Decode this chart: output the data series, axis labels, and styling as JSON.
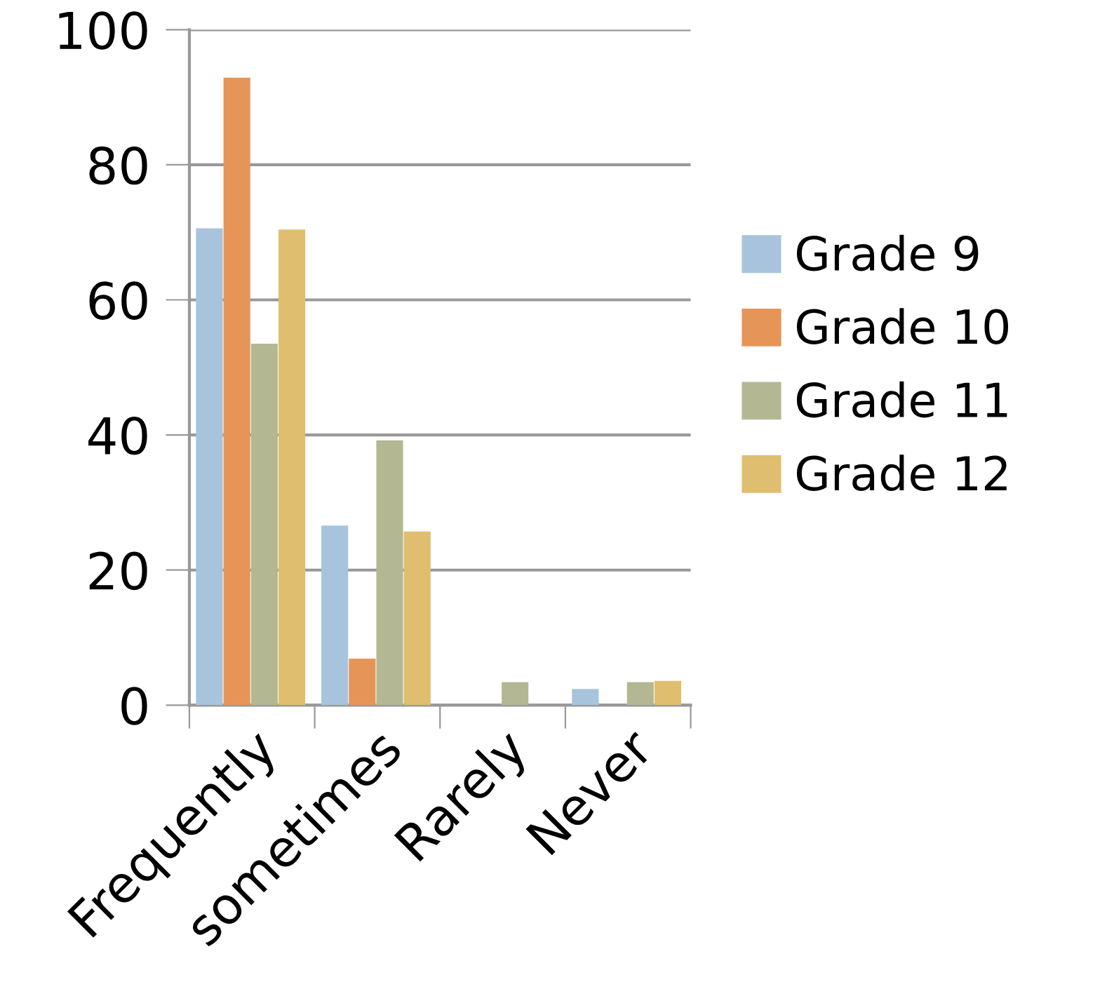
{
  "chart_data": {
    "type": "bar",
    "categories": [
      "Frequently",
      "sometimes",
      "Rarely",
      "Never"
    ],
    "series": [
      {
        "name": "Grade 9",
        "color": "#a7c4dc",
        "values": [
          70.6,
          26.6,
          0,
          2.4
        ]
      },
      {
        "name": "Grade 10",
        "color": "#e69559",
        "values": [
          92.9,
          6.9,
          0,
          0
        ]
      },
      {
        "name": "Grade 11",
        "color": "#b4b892",
        "values": [
          53.5,
          39.2,
          3.4,
          3.4
        ]
      },
      {
        "name": "Grade 12",
        "color": "#dfbe6f",
        "values": [
          70.4,
          25.7,
          0,
          3.6
        ]
      }
    ],
    "ylim": [
      0,
      100
    ],
    "yticks": [
      0,
      20,
      40,
      60,
      80,
      100
    ],
    "grid": "y",
    "legend": "right"
  }
}
